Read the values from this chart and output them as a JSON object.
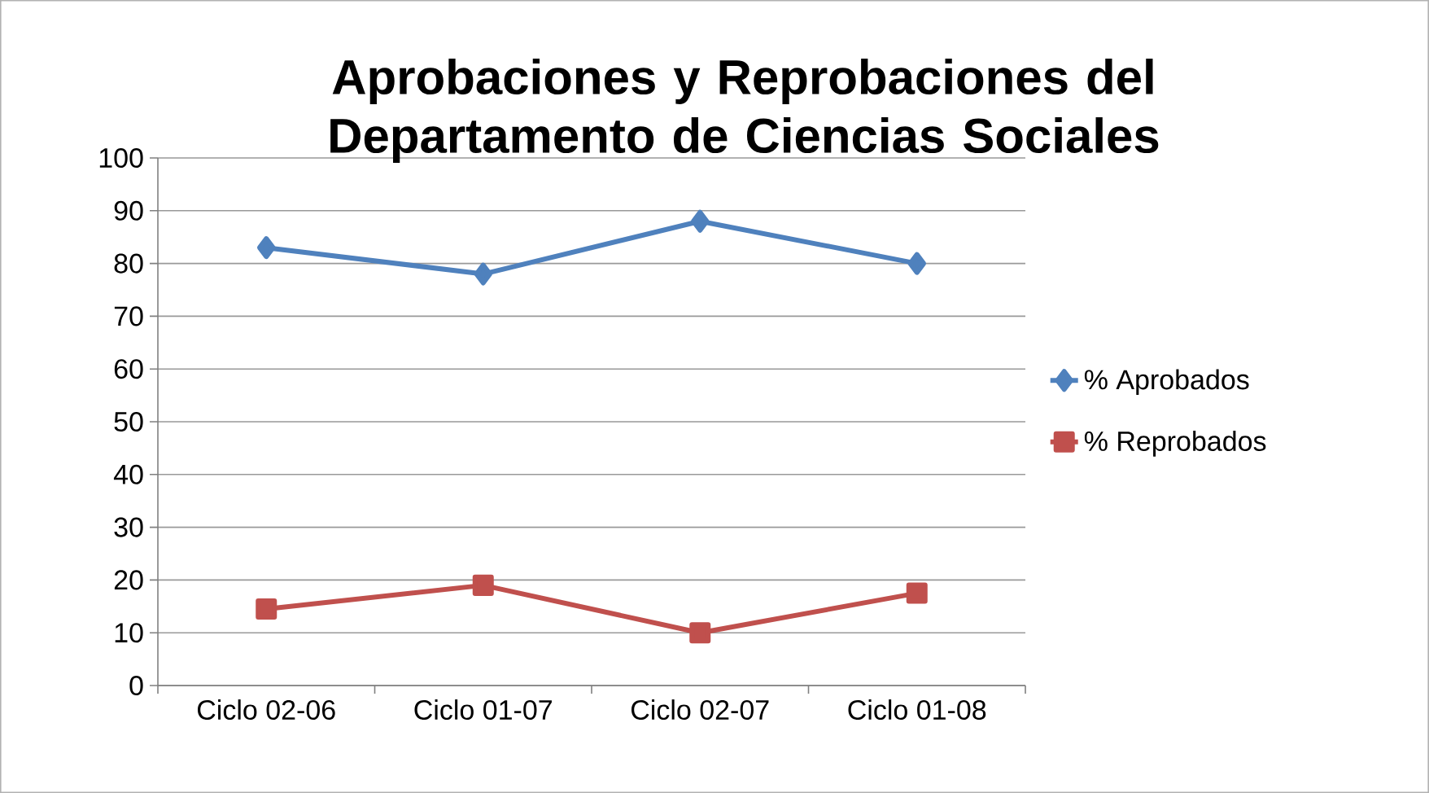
{
  "chart_data": {
    "type": "line",
    "title": "Aprobaciones y Reprobaciones del Departamento de Ciencias Sociales",
    "categories": [
      "Ciclo 02-06",
      "Ciclo 01-07",
      "Ciclo 02-07",
      "Ciclo 01-08"
    ],
    "series": [
      {
        "name": "% Aprobados",
        "color": "#4f81bd",
        "marker": "diamond",
        "values": [
          83,
          78,
          88,
          80
        ]
      },
      {
        "name": "% Reprobados",
        "color": "#c0504d",
        "marker": "square",
        "values": [
          14.5,
          19,
          10,
          17.5
        ]
      }
    ],
    "ylim": [
      0,
      100
    ],
    "yticks": [
      0,
      10,
      20,
      30,
      40,
      50,
      60,
      70,
      80,
      90,
      100
    ],
    "grid": "y",
    "legend": "right",
    "line_style": "solid"
  }
}
